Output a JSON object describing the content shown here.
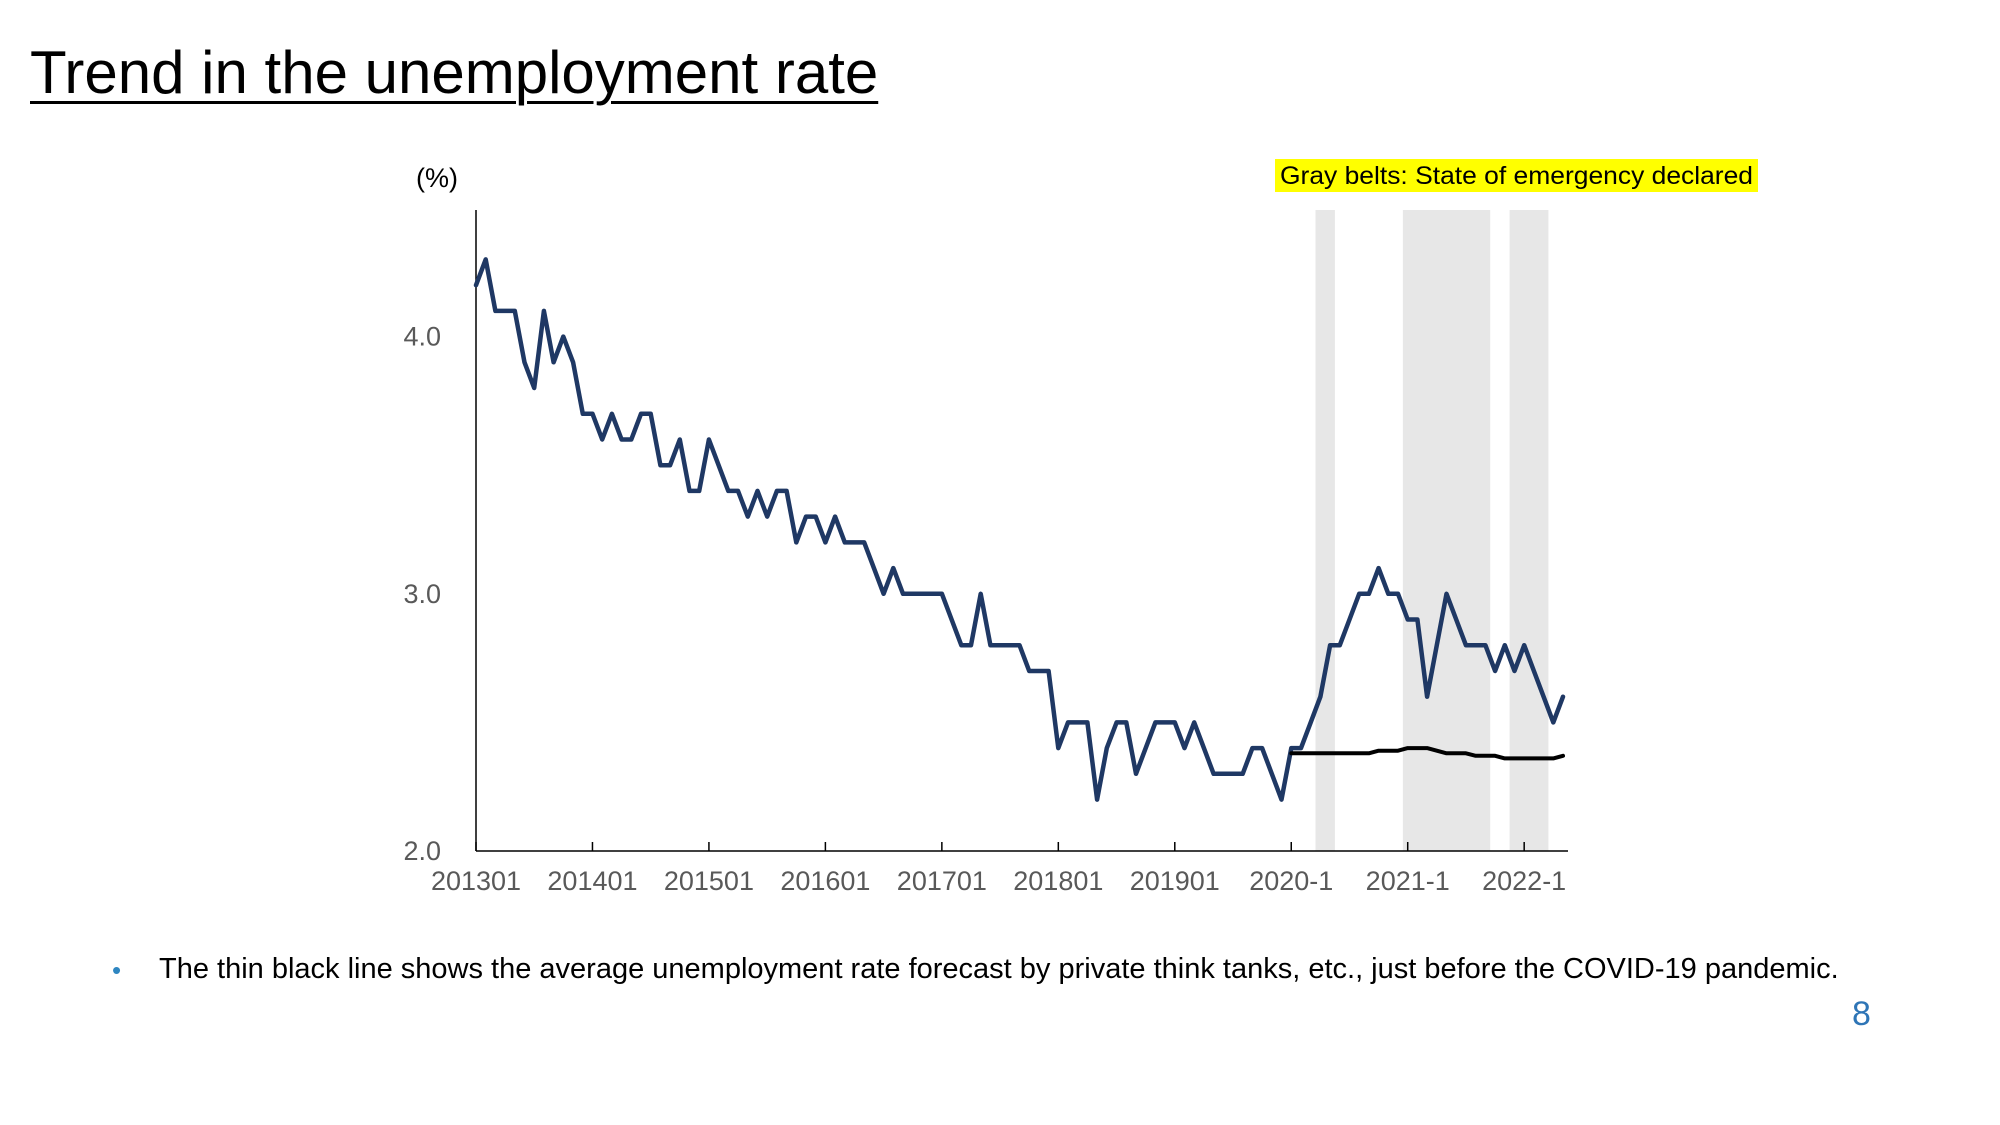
{
  "slide": {
    "title": "Trend in the unemployment rate",
    "bullet": "The thin black line shows the average unemployment rate forecast by private think tanks, etc., just before the COVID-19 pandemic.",
    "page_number": "8"
  },
  "chart_data": {
    "type": "line",
    "title": "",
    "ylabel": "(%)",
    "xlabel": "",
    "ylim": [
      2.0,
      4.5
    ],
    "yticks": [
      2.0,
      3.0,
      4.0
    ],
    "ytick_labels": [
      "2.0",
      "3.0",
      "4.0"
    ],
    "x_range_months": [
      "2013-01",
      "2022-05"
    ],
    "xtick_labels": [
      {
        "label": "201301",
        "month": "2013-01"
      },
      {
        "label": "201401",
        "month": "2014-01"
      },
      {
        "label": "201501",
        "month": "2015-01"
      },
      {
        "label": "201601",
        "month": "2016-01"
      },
      {
        "label": "201701",
        "month": "2017-01"
      },
      {
        "label": "201801",
        "month": "2018-01"
      },
      {
        "label": "201901",
        "month": "2019-01"
      },
      {
        "label": "2020-1",
        "month": "2020-01"
      },
      {
        "label": "2021-1",
        "month": "2021-01"
      },
      {
        "label": "2022-1",
        "month": "2022-01"
      }
    ],
    "annotation": {
      "text": "Gray belts: State of emergency declared",
      "highlight_color": "#ffff00"
    },
    "shaded_periods": [
      {
        "start": "2020-04",
        "end": "2020-05"
      },
      {
        "start": "2021-01",
        "end": "2021-03"
      },
      {
        "start": "2021-04",
        "end": "2021-09"
      },
      {
        "start": "2021-12",
        "end": "2022-03"
      }
    ],
    "shade_color": "#e7e7e7",
    "series": [
      {
        "color": "#1f3864",
        "start": "2013-01",
        "values": [
          4.2,
          4.3,
          4.1,
          4.1,
          4.1,
          3.9,
          3.8,
          4.1,
          3.9,
          4.0,
          3.9,
          3.7,
          3.7,
          3.6,
          3.7,
          3.6,
          3.6,
          3.7,
          3.7,
          3.5,
          3.5,
          3.6,
          3.4,
          3.4,
          3.6,
          3.5,
          3.4,
          3.4,
          3.3,
          3.4,
          3.3,
          3.4,
          3.4,
          3.2,
          3.3,
          3.3,
          3.2,
          3.3,
          3.2,
          3.2,
          3.2,
          3.1,
          3.0,
          3.1,
          3.0,
          3.0,
          3.0,
          3.0,
          3.0,
          2.9,
          2.8,
          2.8,
          3.0,
          2.8,
          2.8,
          2.8,
          2.8,
          2.7,
          2.7,
          2.7,
          2.4,
          2.5,
          2.5,
          2.5,
          2.2,
          2.4,
          2.5,
          2.5,
          2.3,
          2.4,
          2.5,
          2.5,
          2.5,
          2.4,
          2.5,
          2.4,
          2.3,
          2.3,
          2.3,
          2.3,
          2.4,
          2.4,
          2.3,
          2.2,
          2.4,
          2.4,
          2.5,
          2.6,
          2.8,
          2.8,
          2.9,
          3.0,
          3.0,
          3.1,
          3.0,
          3.0,
          2.9,
          2.9,
          2.6,
          2.8,
          3.0,
          2.9,
          2.8,
          2.8,
          2.8,
          2.7,
          2.8,
          2.7,
          2.8,
          2.7,
          2.6,
          2.5,
          2.6
        ]
      },
      {
        "color": "#000000",
        "start": "2020-01",
        "values": [
          2.38,
          2.38,
          2.38,
          2.38,
          2.38,
          2.38,
          2.38,
          2.38,
          2.38,
          2.39,
          2.39,
          2.39,
          2.4,
          2.4,
          2.4,
          2.39,
          2.38,
          2.38,
          2.38,
          2.37,
          2.37,
          2.37,
          2.36,
          2.36,
          2.36,
          2.36,
          2.36,
          2.36,
          2.37
        ]
      }
    ]
  }
}
